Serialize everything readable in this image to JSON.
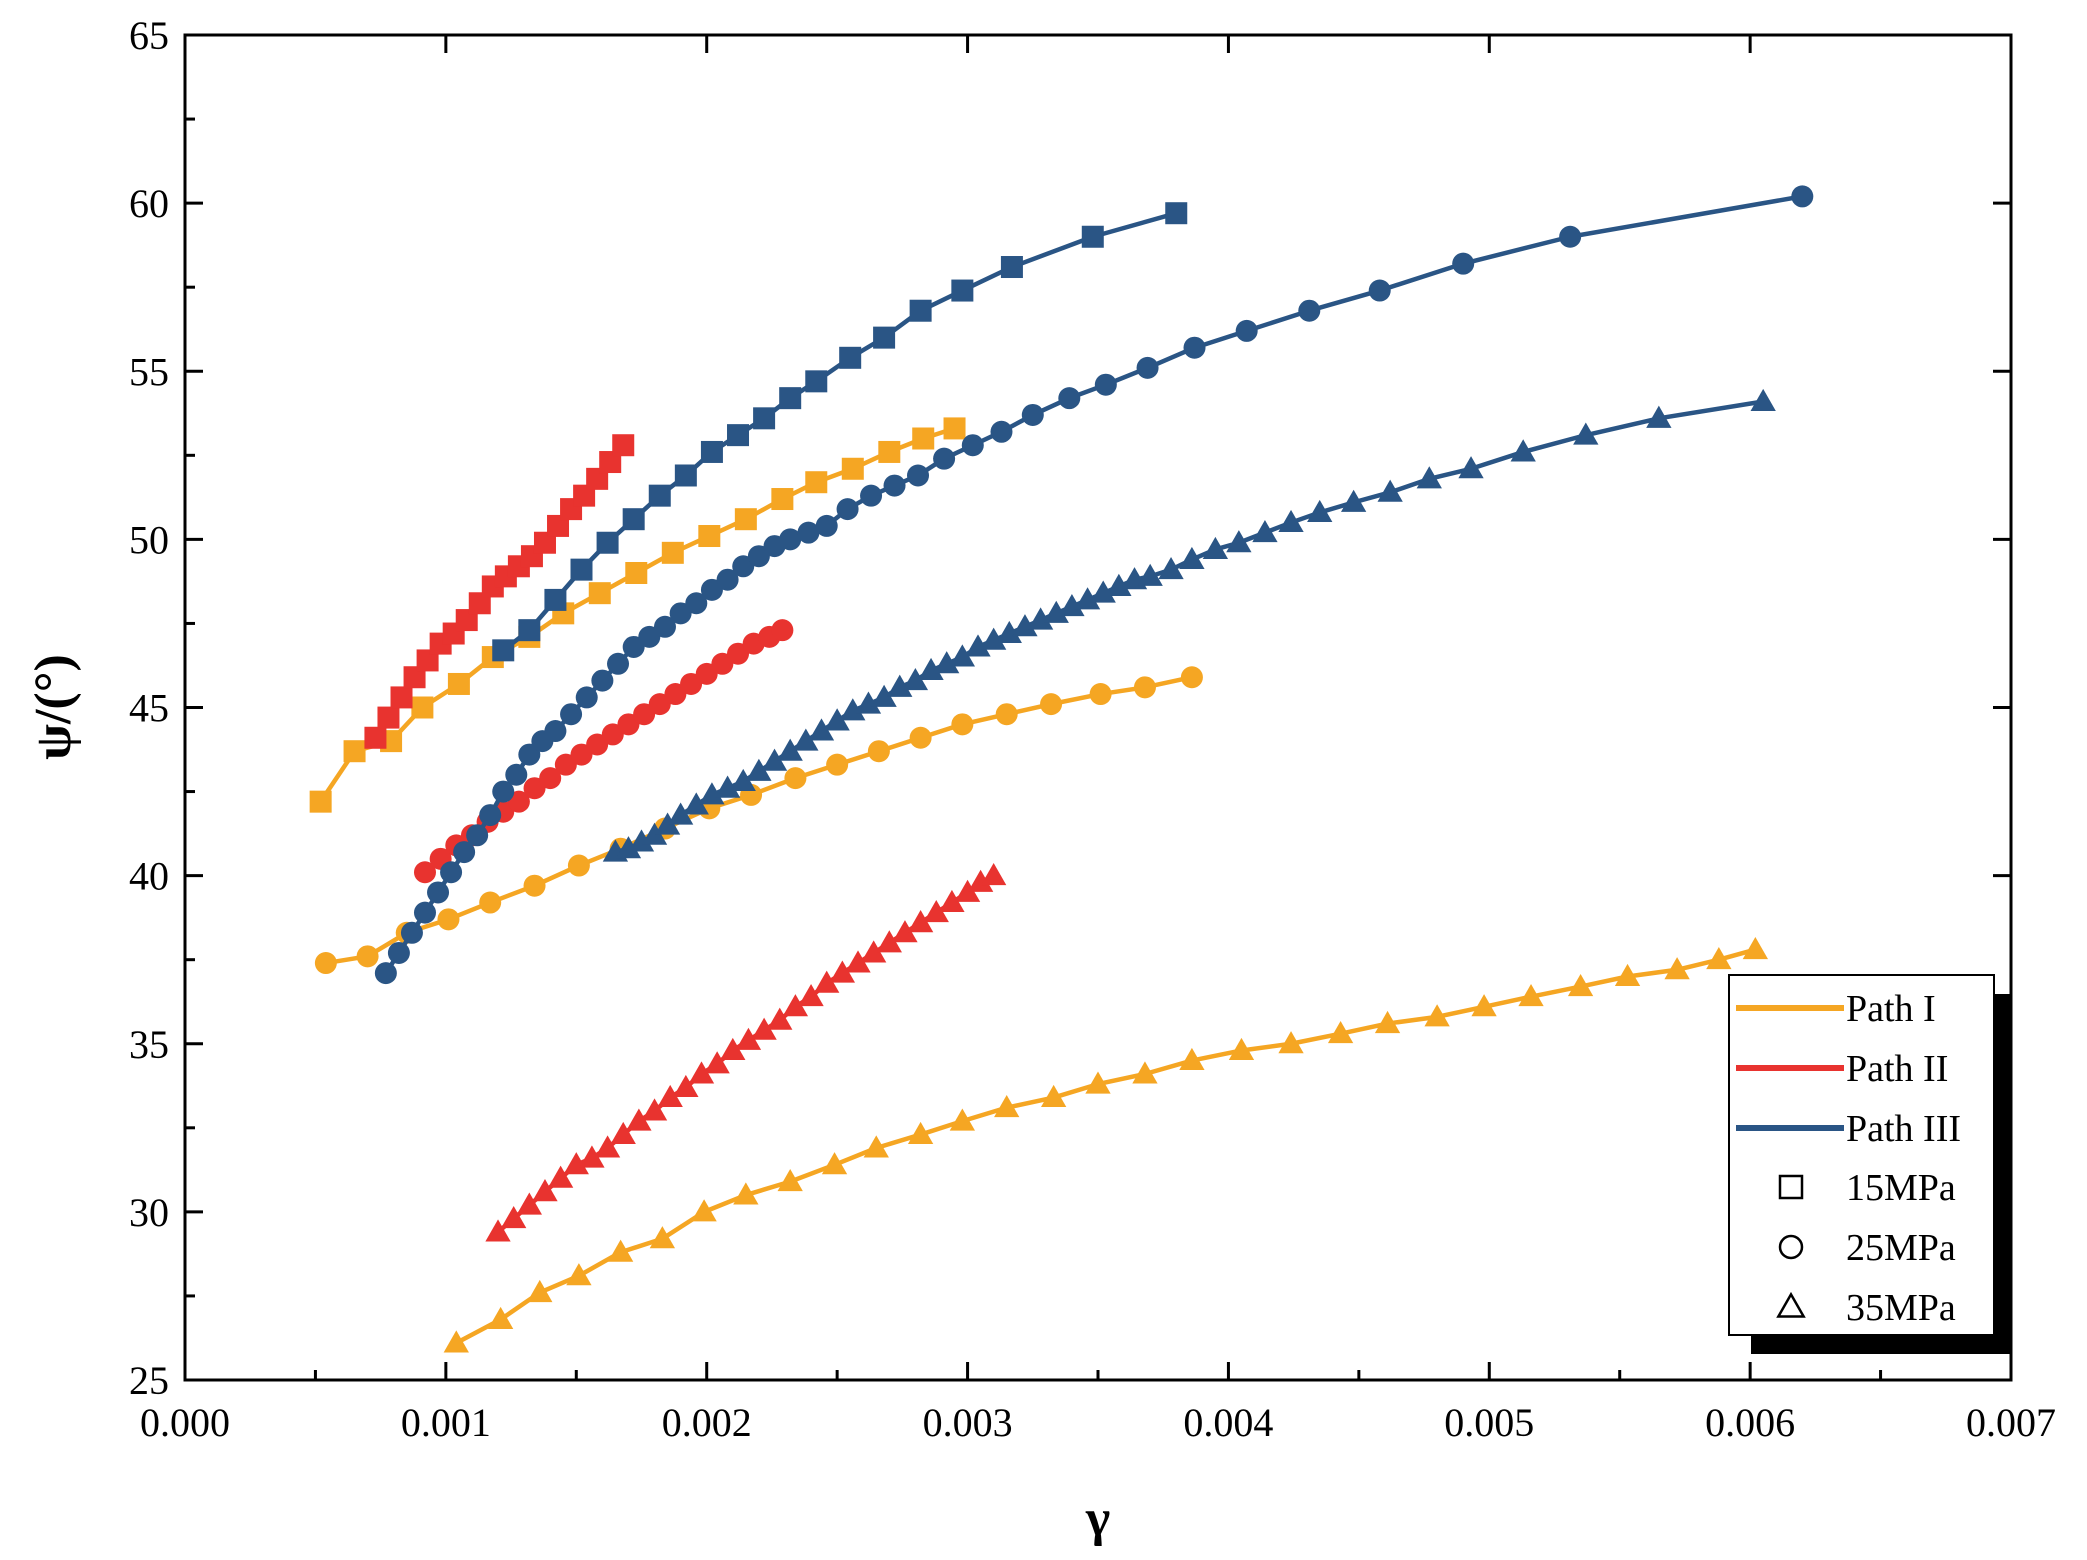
{
  "chart_data": {
    "type": "line",
    "title": "",
    "xlabel": "γ",
    "ylabel": "ψ/(°)",
    "xlim": [
      0.0,
      0.007
    ],
    "ylim": [
      25,
      65
    ],
    "xticks": [
      0.0,
      0.001,
      0.002,
      0.003,
      0.004,
      0.005,
      0.006,
      0.007
    ],
    "xtick_labels": [
      "0.000",
      "0.001",
      "0.002",
      "0.003",
      "0.004",
      "0.005",
      "0.006",
      "0.007"
    ],
    "yticks": [
      25,
      30,
      35,
      40,
      45,
      50,
      55,
      60,
      65
    ],
    "ytick_labels": [
      "25",
      "30",
      "35",
      "40",
      "45",
      "50",
      "55",
      "60",
      "65"
    ],
    "grid": false,
    "legend_position": "bottom-right",
    "legend": {
      "paths": [
        {
          "label": "Path I",
          "color": "#F5A623"
        },
        {
          "label": "Path II",
          "color": "#E8332F"
        },
        {
          "label": "Path III",
          "color": "#2A5585"
        }
      ],
      "pressures": [
        {
          "label": "15MPa",
          "marker": "square"
        },
        {
          "label": "25MPa",
          "marker": "circle"
        },
        {
          "label": "35MPa",
          "marker": "triangle"
        }
      ]
    },
    "series": [
      {
        "name": "Path I 15MPa",
        "path": "Path I",
        "pressure": "15MPa",
        "color": "#F5A623",
        "marker": "square",
        "x": [
          0.00052,
          0.00065,
          0.00079,
          0.00091,
          0.00105,
          0.00118,
          0.00132,
          0.00145,
          0.00159,
          0.00173,
          0.00187,
          0.00201,
          0.00215,
          0.00229,
          0.00242,
          0.00256,
          0.0027,
          0.00283,
          0.00295
        ],
        "y": [
          42.2,
          43.7,
          44.0,
          45.0,
          45.7,
          46.5,
          47.1,
          47.8,
          48.4,
          49.0,
          49.6,
          50.1,
          50.6,
          51.2,
          51.7,
          52.1,
          52.6,
          53.0,
          53.3
        ]
      },
      {
        "name": "Path II 15MPa",
        "path": "Path II",
        "pressure": "15MPa",
        "color": "#E8332F",
        "marker": "square",
        "x": [
          0.00073,
          0.00078,
          0.00083,
          0.00088,
          0.00093,
          0.00098,
          0.00103,
          0.00108,
          0.00113,
          0.00118,
          0.00123,
          0.00128,
          0.00133,
          0.00138,
          0.00143,
          0.00148,
          0.00153,
          0.00158,
          0.00163,
          0.00168
        ],
        "y": [
          44.1,
          44.7,
          45.3,
          45.9,
          46.4,
          46.9,
          47.2,
          47.6,
          48.1,
          48.6,
          48.9,
          49.2,
          49.5,
          49.9,
          50.4,
          50.9,
          51.3,
          51.8,
          52.3,
          52.8
        ]
      },
      {
        "name": "Path III 15MPa",
        "path": "Path III",
        "pressure": "15MPa",
        "color": "#2A5585",
        "marker": "square",
        "x": [
          0.00122,
          0.00132,
          0.00142,
          0.00152,
          0.00162,
          0.00172,
          0.00182,
          0.00192,
          0.00202,
          0.00212,
          0.00222,
          0.00232,
          0.00242,
          0.00255,
          0.00268,
          0.00282,
          0.00298,
          0.00317,
          0.00348,
          0.0038
        ],
        "y": [
          46.7,
          47.3,
          48.2,
          49.1,
          49.9,
          50.6,
          51.3,
          51.9,
          52.6,
          53.1,
          53.6,
          54.2,
          54.7,
          55.4,
          56.0,
          56.8,
          57.4,
          58.1,
          59.0,
          59.7
        ]
      },
      {
        "name": "Path I 25MPa",
        "path": "Path I",
        "pressure": "25MPa",
        "color": "#F5A623",
        "marker": "circle",
        "x": [
          0.00054,
          0.0007,
          0.00085,
          0.00101,
          0.00117,
          0.00134,
          0.00151,
          0.00167,
          0.00184,
          0.00201,
          0.00217,
          0.00234,
          0.0025,
          0.00266,
          0.00282,
          0.00298,
          0.00315,
          0.00332,
          0.00351,
          0.00368,
          0.00386
        ],
        "y": [
          37.4,
          37.6,
          38.3,
          38.7,
          39.2,
          39.7,
          40.3,
          40.8,
          41.4,
          42.0,
          42.4,
          42.9,
          43.3,
          43.7,
          44.1,
          44.5,
          44.8,
          45.1,
          45.4,
          45.6,
          45.9
        ]
      },
      {
        "name": "Path II 25MPa",
        "path": "Path II",
        "pressure": "25MPa",
        "color": "#E8332F",
        "marker": "circle",
        "x": [
          0.00092,
          0.00098,
          0.00104,
          0.0011,
          0.00116,
          0.00122,
          0.00128,
          0.00134,
          0.0014,
          0.00146,
          0.00152,
          0.00158,
          0.00164,
          0.0017,
          0.00176,
          0.00182,
          0.00188,
          0.00194,
          0.002,
          0.00206,
          0.00212,
          0.00218,
          0.00224,
          0.00229
        ],
        "y": [
          40.1,
          40.5,
          40.9,
          41.2,
          41.6,
          41.9,
          42.2,
          42.6,
          42.9,
          43.3,
          43.6,
          43.9,
          44.2,
          44.5,
          44.8,
          45.1,
          45.4,
          45.7,
          46.0,
          46.3,
          46.6,
          46.9,
          47.1,
          47.3
        ]
      },
      {
        "name": "Path III 25MPa",
        "path": "Path III",
        "pressure": "25MPa",
        "color": "#2A5585",
        "marker": "circle",
        "x": [
          0.00077,
          0.00082,
          0.00087,
          0.00092,
          0.00097,
          0.00102,
          0.00107,
          0.00112,
          0.00117,
          0.00122,
          0.00127,
          0.00132,
          0.00137,
          0.00142,
          0.00148,
          0.00154,
          0.0016,
          0.00166,
          0.00172,
          0.00178,
          0.00184,
          0.0019,
          0.00196,
          0.00202,
          0.00208,
          0.00214,
          0.0022,
          0.00226,
          0.00232,
          0.00239,
          0.00246,
          0.00254,
          0.00263,
          0.00272,
          0.00281,
          0.00291,
          0.00302,
          0.00313,
          0.00325,
          0.00339,
          0.00353,
          0.00369,
          0.00387,
          0.00407,
          0.00431,
          0.00458,
          0.0049,
          0.00531,
          0.0062
        ],
        "y": [
          37.1,
          37.7,
          38.3,
          38.9,
          39.5,
          40.1,
          40.7,
          41.2,
          41.8,
          42.5,
          43.0,
          43.6,
          44.0,
          44.3,
          44.8,
          45.3,
          45.8,
          46.3,
          46.8,
          47.1,
          47.4,
          47.8,
          48.1,
          48.5,
          48.8,
          49.2,
          49.5,
          49.8,
          50.0,
          50.2,
          50.4,
          50.9,
          51.3,
          51.6,
          51.9,
          52.4,
          52.8,
          53.2,
          53.7,
          54.2,
          54.6,
          55.1,
          55.7,
          56.2,
          56.8,
          57.4,
          58.2,
          59.0,
          60.2
        ]
      },
      {
        "name": "Path I 35MPa",
        "path": "Path I",
        "pressure": "35MPa",
        "color": "#F5A623",
        "marker": "triangle",
        "x": [
          0.00104,
          0.00121,
          0.00136,
          0.00151,
          0.00167,
          0.00183,
          0.00199,
          0.00215,
          0.00232,
          0.00249,
          0.00265,
          0.00282,
          0.00298,
          0.00315,
          0.00333,
          0.0035,
          0.00368,
          0.00386,
          0.00405,
          0.00424,
          0.00443,
          0.00461,
          0.0048,
          0.00498,
          0.00516,
          0.00535,
          0.00553,
          0.00572,
          0.00588,
          0.00602
        ],
        "y": [
          26.1,
          26.8,
          27.6,
          28.1,
          28.8,
          29.2,
          30.0,
          30.5,
          30.9,
          31.4,
          31.9,
          32.3,
          32.7,
          33.1,
          33.4,
          33.8,
          34.1,
          34.5,
          34.8,
          35.0,
          35.3,
          35.6,
          35.8,
          36.1,
          36.4,
          36.7,
          37.0,
          37.2,
          37.5,
          37.8
        ]
      },
      {
        "name": "Path II 35MPa",
        "path": "Path II",
        "pressure": "35MPa",
        "color": "#E8332F",
        "marker": "triangle",
        "x": [
          0.0012,
          0.00126,
          0.00132,
          0.00138,
          0.00144,
          0.0015,
          0.00156,
          0.00162,
          0.00168,
          0.00174,
          0.0018,
          0.00186,
          0.00192,
          0.00198,
          0.00204,
          0.0021,
          0.00216,
          0.00222,
          0.00228,
          0.00234,
          0.0024,
          0.00246,
          0.00252,
          0.00258,
          0.00264,
          0.0027,
          0.00276,
          0.00282,
          0.00288,
          0.00294,
          0.003,
          0.00305,
          0.0031
        ],
        "y": [
          29.4,
          29.8,
          30.2,
          30.6,
          31.0,
          31.4,
          31.6,
          31.9,
          32.3,
          32.7,
          33.0,
          33.4,
          33.7,
          34.1,
          34.4,
          34.8,
          35.1,
          35.4,
          35.7,
          36.1,
          36.4,
          36.8,
          37.1,
          37.4,
          37.7,
          38.0,
          38.3,
          38.6,
          38.9,
          39.2,
          39.5,
          39.8,
          40.0
        ]
      },
      {
        "name": "Path III 35MPa",
        "path": "Path III",
        "pressure": "35MPa",
        "color": "#2A5585",
        "marker": "triangle",
        "x": [
          0.00165,
          0.0017,
          0.00175,
          0.0018,
          0.00185,
          0.0019,
          0.00196,
          0.00202,
          0.00208,
          0.00214,
          0.0022,
          0.00226,
          0.00232,
          0.00238,
          0.00244,
          0.0025,
          0.00256,
          0.00262,
          0.00268,
          0.00274,
          0.0028,
          0.00286,
          0.00292,
          0.00298,
          0.00304,
          0.0031,
          0.00316,
          0.00322,
          0.00328,
          0.00334,
          0.0034,
          0.00346,
          0.00352,
          0.00358,
          0.00364,
          0.0037,
          0.00378,
          0.00386,
          0.00395,
          0.00404,
          0.00414,
          0.00424,
          0.00435,
          0.00448,
          0.00462,
          0.00477,
          0.00493,
          0.00513,
          0.00537,
          0.00565,
          0.00605
        ],
        "y": [
          40.7,
          40.8,
          41.0,
          41.2,
          41.5,
          41.8,
          42.1,
          42.4,
          42.6,
          42.8,
          43.1,
          43.4,
          43.7,
          44.0,
          44.3,
          44.6,
          44.9,
          45.1,
          45.3,
          45.6,
          45.8,
          46.1,
          46.3,
          46.5,
          46.8,
          47.0,
          47.2,
          47.4,
          47.6,
          47.8,
          48.0,
          48.2,
          48.4,
          48.6,
          48.8,
          48.9,
          49.1,
          49.4,
          49.7,
          49.9,
          50.2,
          50.5,
          50.8,
          51.1,
          51.4,
          51.8,
          52.1,
          52.6,
          53.1,
          53.6,
          54.1
        ]
      }
    ]
  }
}
